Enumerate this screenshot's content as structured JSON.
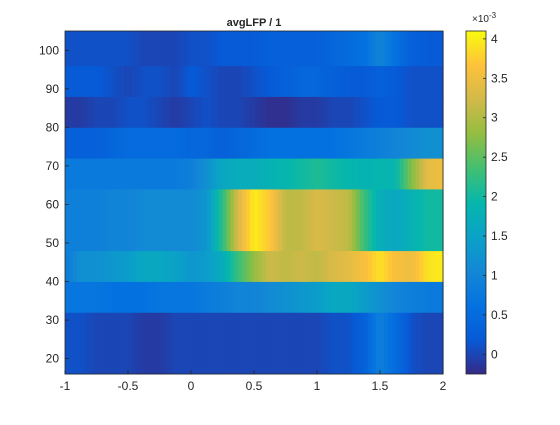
{
  "chart_data": {
    "type": "heatmap",
    "title": "avgLFP / 1",
    "xlabel": "",
    "ylabel": "",
    "xlim": [
      -1,
      2
    ],
    "ylim": [
      16,
      105
    ],
    "x_ticks": [
      -1,
      -0.5,
      0,
      0.5,
      1,
      1.5,
      2
    ],
    "x_tick_labels": [
      "-1",
      "-0.5",
      "0",
      "0.5",
      "1",
      "1.5",
      "2"
    ],
    "y_ticks": [
      20,
      30,
      40,
      50,
      60,
      70,
      80,
      90,
      100
    ],
    "y_tick_labels": [
      "20",
      "30",
      "40",
      "50",
      "60",
      "70",
      "80",
      "90",
      "100"
    ],
    "x": [
      -1.0,
      -0.875,
      -0.75,
      -0.625,
      -0.5,
      -0.375,
      -0.25,
      -0.125,
      0.0,
      0.125,
      0.25,
      0.375,
      0.5,
      0.625,
      0.75,
      0.875,
      1.0,
      1.125,
      1.25,
      1.375,
      1.5,
      1.625,
      1.75,
      1.875,
      2.0
    ],
    "rows": [
      {
        "y_from": 16,
        "y_to": 32,
        "values": [
          0.1,
          0.1,
          0.0,
          0.0,
          0.0,
          -0.1,
          -0.1,
          0.0,
          0.0,
          0.0,
          0.0,
          0.0,
          0.0,
          0.0,
          0.0,
          0.0,
          0.0,
          0.1,
          0.1,
          0.3,
          0.9,
          0.5,
          0.1,
          0.0,
          0.0
        ]
      },
      {
        "y_from": 32,
        "y_to": 40,
        "values": [
          0.7,
          0.7,
          0.7,
          0.6,
          0.6,
          0.6,
          0.7,
          0.7,
          0.7,
          0.8,
          0.9,
          1.0,
          1.0,
          1.1,
          1.2,
          1.3,
          1.4,
          1.6,
          1.6,
          1.4,
          1.2,
          1.0,
          0.9,
          0.8,
          0.8
        ]
      },
      {
        "y_from": 40,
        "y_to": 48,
        "values": [
          0.8,
          1.2,
          1.2,
          1.3,
          1.4,
          1.6,
          1.6,
          1.5,
          1.3,
          1.4,
          1.7,
          2.3,
          2.8,
          3.2,
          3.1,
          3.2,
          3.1,
          3.3,
          3.4,
          3.6,
          3.9,
          3.6,
          3.5,
          3.9,
          4.0
        ]
      },
      {
        "y_from": 48,
        "y_to": 64,
        "values": [
          0.9,
          0.9,
          0.9,
          1.0,
          1.0,
          1.1,
          1.1,
          1.1,
          1.1,
          1.3,
          2.2,
          3.3,
          4.0,
          3.7,
          3.1,
          3.1,
          3.3,
          3.2,
          3.1,
          2.3,
          1.7,
          1.6,
          1.8,
          2.0,
          2.0
        ]
      },
      {
        "y_from": 64,
        "y_to": 72,
        "values": [
          0.8,
          0.8,
          0.8,
          0.8,
          0.8,
          0.8,
          0.8,
          0.8,
          0.9,
          1.2,
          1.6,
          1.7,
          1.7,
          1.8,
          1.9,
          2.0,
          2.1,
          2.0,
          1.9,
          1.8,
          1.9,
          1.9,
          2.7,
          3.4,
          3.5
        ]
      },
      {
        "y_from": 72,
        "y_to": 80,
        "values": [
          0.3,
          0.3,
          0.3,
          0.4,
          0.5,
          0.5,
          0.5,
          0.5,
          0.4,
          0.4,
          0.3,
          0.4,
          0.5,
          0.6,
          0.6,
          0.6,
          0.6,
          0.6,
          0.7,
          0.8,
          0.9,
          1.0,
          1.1,
          1.2,
          1.2
        ]
      },
      {
        "y_from": 80,
        "y_to": 88,
        "values": [
          -0.1,
          -0.1,
          0.0,
          0.0,
          0.1,
          0.1,
          0.0,
          -0.1,
          0.0,
          0.1,
          0.0,
          0.0,
          -0.1,
          -0.2,
          -0.2,
          -0.1,
          -0.1,
          0.0,
          0.0,
          0.1,
          0.2,
          0.2,
          0.1,
          0.1,
          0.1
        ]
      },
      {
        "y_from": 88,
        "y_to": 96,
        "values": [
          0.2,
          0.2,
          0.2,
          0.1,
          0.0,
          0.1,
          0.1,
          0.0,
          0.2,
          0.1,
          0.0,
          0.0,
          0.1,
          0.2,
          0.3,
          0.4,
          0.4,
          0.3,
          0.2,
          0.2,
          0.3,
          0.2,
          0.1,
          0.1,
          0.1
        ]
      },
      {
        "y_from": 96,
        "y_to": 105,
        "values": [
          0.1,
          0.1,
          0.1,
          0.1,
          0.1,
          0.0,
          0.0,
          0.0,
          0.1,
          0.1,
          0.2,
          0.2,
          0.2,
          0.3,
          0.3,
          0.3,
          0.3,
          0.4,
          0.5,
          0.6,
          1.0,
          0.6,
          0.3,
          0.2,
          0.2
        ]
      }
    ],
    "colorbar": {
      "colormap": "parula",
      "range": [
        -0.25,
        4.1
      ],
      "ticks": [
        0,
        0.5,
        1,
        1.5,
        2,
        2.5,
        3,
        3.5,
        4
      ],
      "tick_labels": [
        "0",
        "0.5",
        "1",
        "1.5",
        "2",
        "2.5",
        "3",
        "3.5",
        "4"
      ],
      "exponent_base": "×10",
      "exponent": "-3"
    },
    "grid": false,
    "legend": "none"
  }
}
